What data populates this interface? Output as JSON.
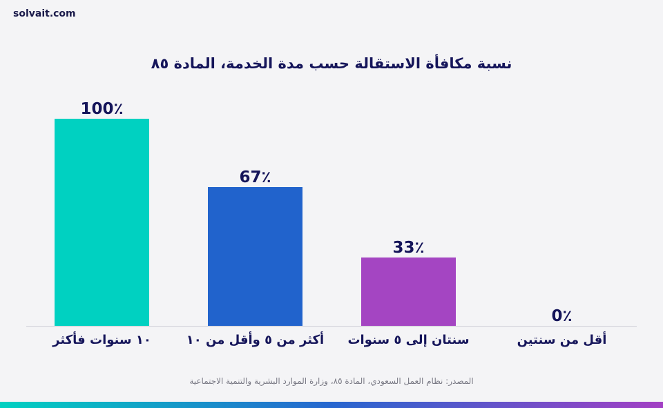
{
  "brand": "solvait.com",
  "source": "المصدر: نظام العمل السعودي، المادة ٨٥، وزارة الموارد البشرية والتنمية الاجتماعية",
  "colors": {
    "bar1": "#00d1c1",
    "bar2": "#2163cc",
    "bar3": "#a445c2",
    "bar4": "#2163cc",
    "text": "#15155a",
    "axis": "#cfcfd6"
  },
  "chart_data": {
    "type": "bar",
    "title": "نسبة مكافأة الاستقالة حسب مدة الخدمة، المادة ٨٥",
    "categories": [
      "١٠ سنوات فأكثر",
      "أكثر من ٥ وأقل من ١٠",
      "سنتان إلى ٥ سنوات",
      "أقل من سنتين"
    ],
    "values": [
      100,
      67,
      33,
      0
    ],
    "value_labels": [
      "100٪",
      "67٪",
      "33٪",
      "0٪"
    ],
    "ylim": [
      0,
      100
    ],
    "grid": false,
    "legend": "none"
  }
}
